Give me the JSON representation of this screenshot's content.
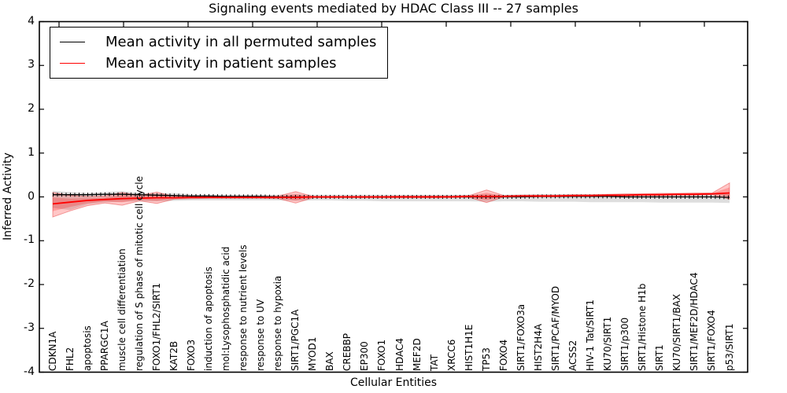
{
  "figure": {
    "title": "Signaling events mediated by HDAC Class III -- 27 samples",
    "xlabel": "Cellular Entities",
    "ylabel": "Inferred Activity"
  },
  "chart_data": {
    "type": "line",
    "title": "Signaling events mediated by HDAC Class III -- 27 samples",
    "xlabel": "Cellular Entities",
    "ylabel": "Inferred Activity",
    "ylim": [
      -4,
      4
    ],
    "yticks": [
      4,
      3,
      2,
      1,
      0,
      -1,
      -2,
      -3,
      -4
    ],
    "grid": false,
    "legend_position": "upper left",
    "background_color": "#ffffff",
    "categories": [
      "CDKN1A",
      "FHL2",
      "apoptosis",
      "PPARGC1A",
      "muscle cell differentiation",
      "regulation of S phase of mitotic cell cycle",
      "FOXO1/FHL2/SIRT1",
      "KAT2B",
      "FOXO3",
      "induction of apoptosis",
      "mol:Lysophosphatidic acid",
      "response to nutrient levels",
      "response to UV",
      "response to hypoxia",
      "SIRT1/PGC1A",
      "MYOD1",
      "BAX",
      "CREBBP",
      "EP300",
      "FOXO1",
      "HDAC4",
      "MEF2D",
      "TAT",
      "XRCC6",
      "HIST1H1E",
      "TP53",
      "FOXO4",
      "SIRT1/FOXO3a",
      "HIST2H4A",
      "SIRT1/PCAF/MYOD",
      "ACSS2",
      "HIV-1 Tat/SIRT1",
      "KU70/SIRT1",
      "SIRT1/p300",
      "SIRT1/Histone H1b",
      "SIRT1",
      "KU70/SIRT1/BAX",
      "SIRT1/MEF2D/HDAC4",
      "SIRT1/FOXO4",
      "p53/SIRT1"
    ],
    "series": [
      {
        "name": "Mean activity in all permuted samples",
        "color": "#000000",
        "marker": "|",
        "values": [
          0.05,
          0.05,
          0.05,
          0.06,
          0.06,
          0.05,
          0.04,
          0.03,
          0.02,
          0.02,
          0.01,
          0.01,
          0.01,
          0.0,
          0.0,
          0.0,
          0.0,
          0.0,
          0.0,
          0.0,
          0.0,
          0.0,
          0.0,
          0.0,
          0.0,
          0.0,
          0.0,
          0.0,
          0.01,
          0.01,
          0.01,
          0.01,
          0.01,
          0.0,
          0.0,
          0.0,
          0.0,
          0.0,
          0.0,
          -0.01
        ],
        "band": {
          "color": "#000000",
          "alpha": 0.13,
          "upper": [
            0.14,
            0.11,
            0.09,
            0.11,
            0.13,
            0.09,
            0.08,
            0.09,
            0.06,
            0.05,
            0.05,
            0.05,
            0.05,
            0.05,
            0.06,
            0.05,
            0.05,
            0.05,
            0.05,
            0.05,
            0.05,
            0.05,
            0.05,
            0.05,
            0.05,
            0.06,
            0.05,
            0.05,
            0.06,
            0.06,
            0.06,
            0.06,
            0.06,
            0.06,
            0.06,
            0.06,
            0.06,
            0.06,
            0.06,
            0.07
          ],
          "lower": [
            -0.25,
            -0.3,
            -0.17,
            -0.12,
            -0.11,
            -0.1,
            -0.1,
            -0.09,
            -0.08,
            -0.08,
            -0.08,
            -0.08,
            -0.08,
            -0.08,
            -0.09,
            -0.08,
            -0.08,
            -0.09,
            -0.09,
            -0.1,
            -0.1,
            -0.1,
            -0.1,
            -0.1,
            -0.1,
            -0.11,
            -0.1,
            -0.1,
            -0.11,
            -0.11,
            -0.11,
            -0.12,
            -0.12,
            -0.12,
            -0.12,
            -0.13,
            -0.13,
            -0.13,
            -0.13,
            -0.14
          ]
        }
      },
      {
        "name": "Mean activity in patient samples",
        "color": "#ff0000",
        "marker": "",
        "values": [
          -0.16,
          -0.12,
          -0.08,
          -0.06,
          -0.04,
          -0.03,
          -0.02,
          -0.02,
          -0.01,
          -0.01,
          -0.01,
          -0.01,
          -0.01,
          -0.01,
          -0.01,
          0.0,
          0.0,
          0.0,
          0.0,
          0.0,
          0.0,
          0.0,
          0.0,
          0.0,
          0.01,
          0.01,
          0.01,
          0.02,
          0.02,
          0.02,
          0.03,
          0.03,
          0.04,
          0.04,
          0.05,
          0.05,
          0.06,
          0.06,
          0.07,
          0.09
        ],
        "band": {
          "color": "#ff0000",
          "alpha": 0.22,
          "upper": [
            0.1,
            0.03,
            0.01,
            0.02,
            0.1,
            0.03,
            0.11,
            0.01,
            0.01,
            0.01,
            0.01,
            0.01,
            0.01,
            0.02,
            0.12,
            0.01,
            0.01,
            0.01,
            0.01,
            0.01,
            0.02,
            0.02,
            0.02,
            0.02,
            0.03,
            0.16,
            0.03,
            0.04,
            0.04,
            0.04,
            0.05,
            0.05,
            0.06,
            0.07,
            0.07,
            0.08,
            0.08,
            0.09,
            0.09,
            0.32
          ],
          "lower": [
            -0.46,
            -0.32,
            -0.2,
            -0.14,
            -0.19,
            -0.09,
            -0.15,
            -0.05,
            -0.04,
            -0.03,
            -0.03,
            -0.03,
            -0.03,
            -0.04,
            -0.14,
            -0.02,
            -0.02,
            -0.02,
            -0.02,
            -0.02,
            -0.02,
            -0.02,
            -0.02,
            -0.01,
            -0.01,
            -0.13,
            0.0,
            0.0,
            0.0,
            0.0,
            0.01,
            0.01,
            0.02,
            0.02,
            0.03,
            0.03,
            0.04,
            0.04,
            0.05,
            -0.05
          ]
        }
      }
    ]
  }
}
